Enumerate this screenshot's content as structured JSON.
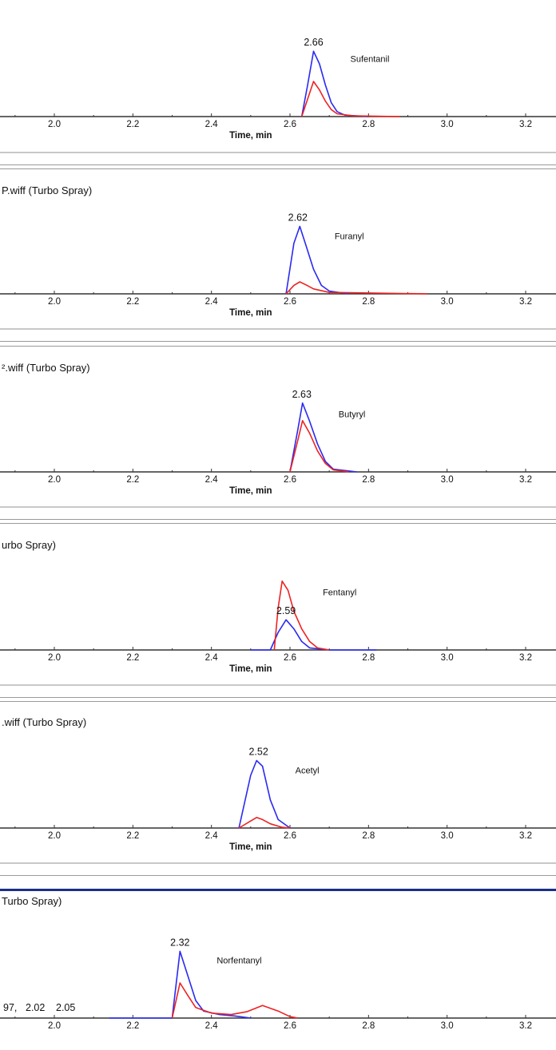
{
  "colors": {
    "series_blue": "#2a2af0",
    "series_red": "#ee2222",
    "axis": "#333333",
    "separator_gray": "#b8b8b8",
    "separator_blue": "#1a2f8a"
  },
  "panel_titles": [
    "",
    "P.wiff (Turbo Spray)",
    "².wiff (Turbo Spray)",
    "urbo Spray)",
    ".wiff (Turbo Spray)",
    "Turbo Spray)"
  ],
  "chart_data": [
    {
      "type": "line",
      "title": "",
      "xlabel": "Time, min",
      "compound_label": "Sufentanil",
      "xlim": [
        1.87,
        3.28
      ],
      "xticks": [
        "2.0",
        "2.2",
        "2.4",
        "2.6",
        "2.8",
        "3.0",
        "3.2"
      ],
      "peak_labels": [
        {
          "x": 2.66,
          "text": "2.66"
        }
      ],
      "series": [
        {
          "color": "blue",
          "points": [
            [
              2.63,
              0
            ],
            [
              2.645,
              0.45
            ],
            [
              2.66,
              0.93
            ],
            [
              2.675,
              0.75
            ],
            [
              2.69,
              0.45
            ],
            [
              2.705,
              0.2
            ],
            [
              2.72,
              0.07
            ],
            [
              2.74,
              0.02
            ],
            [
              2.8,
              0
            ]
          ]
        },
        {
          "color": "red",
          "points": [
            [
              2.63,
              0
            ],
            [
              2.645,
              0.25
            ],
            [
              2.66,
              0.5
            ],
            [
              2.675,
              0.38
            ],
            [
              2.69,
              0.22
            ],
            [
              2.705,
              0.1
            ],
            [
              2.72,
              0.04
            ],
            [
              2.76,
              0.01
            ],
            [
              2.88,
              0
            ]
          ]
        }
      ]
    },
    {
      "type": "line",
      "title": "",
      "xlabel": "Time, min",
      "compound_label": "Furanyl",
      "xlim": [
        1.87,
        3.28
      ],
      "xticks": [
        "2.0",
        "2.2",
        "2.4",
        "2.6",
        "2.8",
        "3.0",
        "3.2"
      ],
      "peak_labels": [
        {
          "x": 2.62,
          "text": "2.62"
        }
      ],
      "series": [
        {
          "color": "blue",
          "points": [
            [
              2.59,
              0
            ],
            [
              2.61,
              0.72
            ],
            [
              2.625,
              0.96
            ],
            [
              2.64,
              0.7
            ],
            [
              2.66,
              0.35
            ],
            [
              2.68,
              0.12
            ],
            [
              2.7,
              0.04
            ],
            [
              2.75,
              0
            ]
          ]
        },
        {
          "color": "red",
          "points": [
            [
              2.59,
              0
            ],
            [
              2.61,
              0.12
            ],
            [
              2.625,
              0.17
            ],
            [
              2.64,
              0.13
            ],
            [
              2.66,
              0.07
            ],
            [
              2.7,
              0.02
            ],
            [
              2.95,
              0
            ]
          ]
        }
      ]
    },
    {
      "type": "line",
      "title": "",
      "xlabel": "Time, min",
      "compound_label": "Butyryl",
      "xlim": [
        1.87,
        3.28
      ],
      "xticks": [
        "2.0",
        "2.2",
        "2.4",
        "2.6",
        "2.8",
        "3.0",
        "3.2"
      ],
      "peak_labels": [
        {
          "x": 2.63,
          "text": "2.63"
        }
      ],
      "series": [
        {
          "color": "blue",
          "points": [
            [
              2.6,
              0
            ],
            [
              2.62,
              0.6
            ],
            [
              2.632,
              0.98
            ],
            [
              2.65,
              0.72
            ],
            [
              2.67,
              0.4
            ],
            [
              2.69,
              0.15
            ],
            [
              2.71,
              0.04
            ],
            [
              2.77,
              0
            ]
          ]
        },
        {
          "color": "red",
          "points": [
            [
              2.6,
              0
            ],
            [
              2.62,
              0.45
            ],
            [
              2.632,
              0.73
            ],
            [
              2.65,
              0.55
            ],
            [
              2.67,
              0.3
            ],
            [
              2.69,
              0.12
            ],
            [
              2.71,
              0.03
            ],
            [
              2.75,
              0
            ]
          ]
        }
      ]
    },
    {
      "type": "line",
      "title": "",
      "xlabel": "Time, min",
      "compound_label": "Fentanyl",
      "xlim": [
        1.87,
        3.28
      ],
      "xticks": [
        "2.0",
        "2.2",
        "2.4",
        "2.6",
        "2.8",
        "3.0",
        "3.2"
      ],
      "peak_labels": [
        {
          "x": 2.59,
          "text": "2.59"
        }
      ],
      "series": [
        {
          "color": "blue",
          "points": [
            [
              2.5,
              0
            ],
            [
              2.55,
              0
            ],
            [
              2.57,
              0.25
            ],
            [
              2.59,
              0.43
            ],
            [
              2.61,
              0.3
            ],
            [
              2.63,
              0.12
            ],
            [
              2.65,
              0.03
            ],
            [
              2.7,
              0
            ],
            [
              2.82,
              0
            ]
          ]
        },
        {
          "color": "red",
          "points": [
            [
              2.56,
              0
            ],
            [
              2.57,
              0.6
            ],
            [
              2.58,
              0.98
            ],
            [
              2.595,
              0.85
            ],
            [
              2.61,
              0.55
            ],
            [
              2.63,
              0.3
            ],
            [
              2.65,
              0.12
            ],
            [
              2.67,
              0.03
            ],
            [
              2.7,
              0
            ]
          ]
        }
      ]
    },
    {
      "type": "line",
      "title": "",
      "xlabel": "Time, min",
      "compound_label": "Acetyl",
      "xlim": [
        1.87,
        3.28
      ],
      "xticks": [
        "2.0",
        "2.2",
        "2.4",
        "2.6",
        "2.8",
        "3.0",
        "3.2"
      ],
      "peak_labels": [
        {
          "x": 2.52,
          "text": "2.52"
        }
      ],
      "series": [
        {
          "color": "blue",
          "points": [
            [
              2.47,
              0
            ],
            [
              2.5,
              0.75
            ],
            [
              2.515,
              0.96
            ],
            [
              2.53,
              0.88
            ],
            [
              2.55,
              0.4
            ],
            [
              2.57,
              0.12
            ],
            [
              2.6,
              0
            ]
          ]
        },
        {
          "color": "red",
          "points": [
            [
              2.47,
              0
            ],
            [
              2.5,
              0.1
            ],
            [
              2.515,
              0.15
            ],
            [
              2.53,
              0.12
            ],
            [
              2.55,
              0.06
            ],
            [
              2.58,
              0.01
            ],
            [
              2.6,
              0
            ]
          ]
        }
      ]
    },
    {
      "type": "line",
      "title": "",
      "xlabel": "",
      "compound_label": "Norfentanyl",
      "xlim": [
        1.87,
        3.28
      ],
      "xticks": [
        "2.0",
        "2.2",
        "2.4",
        "2.6",
        "2.8",
        "3.0",
        "3.2"
      ],
      "peak_labels": [
        {
          "x": 2.32,
          "text": "2.32"
        }
      ],
      "extra_labels": [
        "97,",
        "2.02",
        "2.05"
      ],
      "series": [
        {
          "color": "blue",
          "points": [
            [
              2.14,
              0
            ],
            [
              2.3,
              0
            ],
            [
              2.32,
              0.95
            ],
            [
              2.34,
              0.6
            ],
            [
              2.36,
              0.25
            ],
            [
              2.38,
              0.1
            ],
            [
              2.42,
              0.05
            ],
            [
              2.46,
              0.03
            ],
            [
              2.5,
              0
            ]
          ]
        },
        {
          "color": "red",
          "points": [
            [
              2.3,
              0
            ],
            [
              2.32,
              0.5
            ],
            [
              2.34,
              0.32
            ],
            [
              2.36,
              0.15
            ],
            [
              2.4,
              0.07
            ],
            [
              2.45,
              0.05
            ],
            [
              2.49,
              0.09
            ],
            [
              2.53,
              0.18
            ],
            [
              2.57,
              0.1
            ],
            [
              2.6,
              0.02
            ],
            [
              2.62,
              0
            ]
          ]
        }
      ]
    }
  ]
}
